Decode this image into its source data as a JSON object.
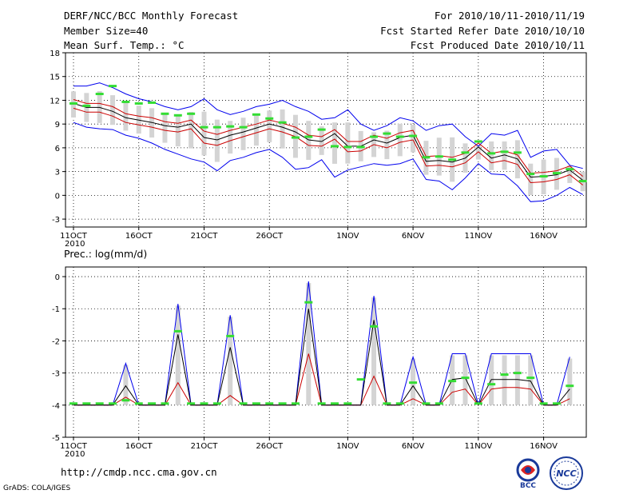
{
  "header": {
    "title": "DERF/NCC/BCC Monthly Forecast",
    "member_size": "Member Size=40",
    "variable": "Mean Surf. Temp.: °C",
    "for_range": "For 2010/10/11-2010/11/19",
    "fcst_started": "Fcst Started Refer Date 2010/10/10",
    "fcst_produced": "Fcst Produced Date 2010/10/11"
  },
  "footer": {
    "url": "http://cmdp.ncc.cma.gov.cn",
    "grads": "GrADS: COLA/IGES",
    "logo_bcc": "BCC",
    "logo_ncc": "NCC"
  },
  "chart_data": [
    {
      "type": "line",
      "title": "Mean Surf. Temp.: °C",
      "ylabel": "",
      "ylim": [
        -4,
        18
      ],
      "yticks": [
        -3,
        0,
        3,
        6,
        9,
        12,
        15,
        18
      ],
      "x_tick_days": [
        0,
        5,
        10,
        15,
        21,
        26,
        31,
        36
      ],
      "x_tick_labels": [
        "11OCT",
        "16OCT",
        "21OCT",
        "26OCT",
        "1NOV",
        "6NOV",
        "11NOV",
        "16NOV"
      ],
      "x_year_label": "2010",
      "n_days": 40,
      "colors": {
        "max": "#0000ee",
        "mean": "#000000",
        "band": "#cc0000",
        "obs": "#33dd33",
        "box": "#d4d4d4"
      },
      "series": [
        {
          "name": "max",
          "values": [
            13.8,
            13.8,
            14.2,
            13.6,
            12.8,
            12.2,
            11.8,
            11.2,
            10.8,
            11.2,
            12.2,
            10.8,
            10.2,
            10.6,
            11.2,
            11.5,
            12.0,
            11.2,
            10.6,
            9.6,
            9.8,
            10.8,
            9.0,
            8.2,
            8.8,
            9.8,
            9.4,
            8.2,
            8.8,
            9.0,
            7.4,
            6.2,
            7.8,
            7.6,
            8.2,
            4.8,
            5.6,
            5.8,
            3.8,
            3.4
          ]
        },
        {
          "name": "upper_band",
          "values": [
            12.1,
            11.6,
            11.6,
            11.2,
            10.3,
            10.0,
            9.8,
            9.3,
            9.1,
            9.5,
            8.1,
            7.7,
            8.2,
            8.6,
            9.0,
            9.5,
            9.1,
            8.6,
            7.6,
            7.4,
            8.3,
            6.8,
            6.8,
            7.6,
            7.2,
            7.9,
            8.2,
            4.9,
            5.0,
            4.8,
            5.3,
            6.6,
            5.3,
            5.6,
            5.1,
            2.8,
            2.9,
            3.1,
            3.7,
            2.4
          ]
        },
        {
          "name": "mean",
          "values": [
            11.6,
            11.1,
            11.1,
            10.6,
            9.8,
            9.5,
            9.2,
            8.8,
            8.6,
            9.0,
            7.3,
            7.0,
            7.6,
            8.0,
            8.5,
            9.0,
            8.6,
            8.0,
            7.0,
            6.8,
            7.8,
            6.2,
            6.2,
            7.0,
            6.6,
            7.3,
            7.6,
            4.3,
            4.4,
            4.2,
            4.7,
            6.1,
            4.7,
            5.1,
            4.6,
            2.3,
            2.4,
            2.6,
            3.2,
            1.9
          ]
        },
        {
          "name": "lower_band",
          "values": [
            11.0,
            10.5,
            10.5,
            10.0,
            9.2,
            8.9,
            8.6,
            8.2,
            8.0,
            8.4,
            6.6,
            6.3,
            6.9,
            7.4,
            7.9,
            8.4,
            8.0,
            7.4,
            6.3,
            6.2,
            7.1,
            5.5,
            5.6,
            6.4,
            6.0,
            6.7,
            7.0,
            3.7,
            3.8,
            3.6,
            4.1,
            5.5,
            4.1,
            4.4,
            3.9,
            1.6,
            1.7,
            2.0,
            2.6,
            1.3
          ]
        },
        {
          "name": "min",
          "values": [
            9.2,
            8.6,
            8.4,
            8.3,
            7.6,
            7.2,
            6.6,
            5.8,
            5.2,
            4.6,
            4.2,
            3.1,
            4.4,
            4.8,
            5.4,
            5.8,
            4.8,
            3.3,
            3.5,
            4.5,
            2.3,
            3.2,
            3.6,
            4.0,
            3.8,
            4.0,
            4.6,
            2.0,
            1.8,
            0.7,
            2.2,
            4.0,
            2.7,
            2.6,
            1.2,
            -0.8,
            -0.7,
            0.0,
            1.0,
            0.1
          ]
        },
        {
          "name": "observed",
          "values": [
            11.6,
            11.3,
            12.8,
            13.8,
            11.8,
            11.6,
            11.7,
            10.3,
            10.1,
            10.3,
            8.6,
            8.6,
            8.7,
            8.6,
            10.2,
            9.7,
            9.2,
            7.3,
            7.4,
            8.3,
            6.2,
            6.1,
            6.1,
            7.4,
            7.8,
            7.4,
            7.5,
            4.8,
            4.9,
            4.5,
            5.4,
            6.8,
            5.3,
            5.5,
            5.4,
            2.7,
            2.4,
            2.8,
            3.3,
            1.8
          ]
        }
      ]
    },
    {
      "type": "line",
      "title": "Prec.: log(mm/d)",
      "ylabel": "",
      "ylim": [
        -5,
        0.3
      ],
      "yticks": [
        -5,
        -4,
        -3,
        -2,
        -1,
        0
      ],
      "x_tick_days": [
        0,
        5,
        10,
        15,
        21,
        26,
        31,
        36
      ],
      "x_tick_labels": [
        "11OCT",
        "16OCT",
        "21OCT",
        "26OCT",
        "1NOV",
        "6NOV",
        "11NOV",
        "16NOV"
      ],
      "x_year_label": "2010",
      "n_days": 40,
      "series": [
        {
          "name": "max",
          "values": [
            -4,
            -4,
            -4,
            -4,
            -2.7,
            -4,
            -4,
            -4,
            -0.85,
            -4,
            -4,
            -4,
            -1.2,
            -4,
            -4,
            -4,
            -4,
            -4,
            -0.15,
            -4,
            -4,
            -4,
            -4,
            -0.6,
            -4,
            -4,
            -2.5,
            -4,
            -4,
            -2.4,
            -2.4,
            -4,
            -2.4,
            -2.4,
            -2.4,
            -2.4,
            -4,
            -4,
            -2.5
          ]
        },
        {
          "name": "mean",
          "values": [
            -4,
            -4,
            -4,
            -4,
            -3.4,
            -4,
            -4,
            -4,
            -1.8,
            -4,
            -4,
            -4,
            -2.2,
            -4,
            -4,
            -4,
            -4,
            -4,
            -1.0,
            -4,
            -4,
            -4,
            -4,
            -1.35,
            -4,
            -4,
            -3.4,
            -4,
            -4,
            -3.2,
            -3.15,
            -4,
            -3.2,
            -3.2,
            -3.2,
            -3.25,
            -4,
            -4,
            -3.5
          ]
        },
        {
          "name": "lower_band",
          "values": [
            -4,
            -4,
            -4,
            -4,
            -3.75,
            -4,
            -4,
            -4,
            -3.3,
            -4,
            -4,
            -4,
            -3.7,
            -4,
            -4,
            -4,
            -4,
            -4,
            -2.4,
            -4,
            -4,
            -4,
            -4,
            -3.1,
            -4,
            -4,
            -3.8,
            -4,
            -4,
            -3.6,
            -3.5,
            -4,
            -3.5,
            -3.45,
            -3.45,
            -3.5,
            -4,
            -4,
            -3.8
          ]
        },
        {
          "name": "observed",
          "values": [
            -3.95,
            -3.95,
            -3.95,
            -3.95,
            -3.85,
            -3.95,
            -3.95,
            -3.95,
            -1.7,
            -3.95,
            -3.95,
            -3.95,
            -1.85,
            -3.95,
            -3.95,
            -3.95,
            -3.95,
            -3.95,
            -0.8,
            -3.95,
            -3.95,
            -3.95,
            -3.2,
            -1.55,
            -3.95,
            -3.95,
            -3.3,
            -3.95,
            -3.95,
            -3.25,
            -3.15,
            -3.95,
            -3.35,
            -3.05,
            -3.0,
            -3.15,
            -3.95,
            -3.95,
            -3.4
          ]
        }
      ]
    }
  ]
}
